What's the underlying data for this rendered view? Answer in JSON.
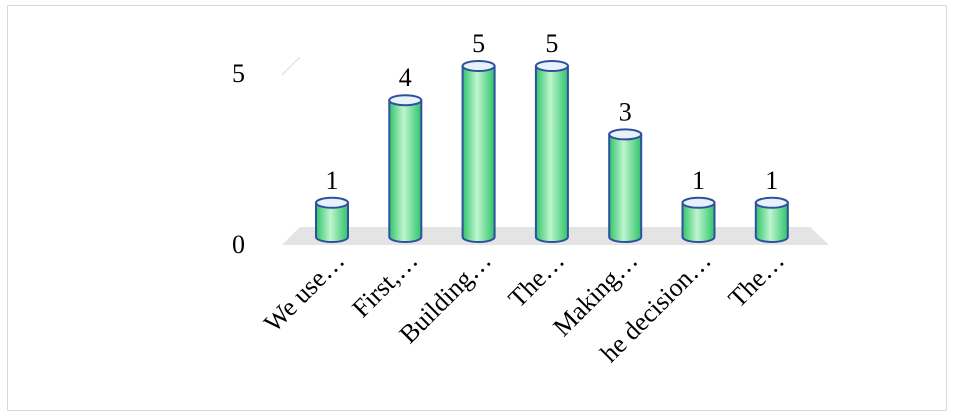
{
  "chart_data": {
    "type": "bar",
    "style": "3d-cylinder",
    "categories": [
      "We use…",
      "First,…",
      "Building…",
      "The…",
      "Making…",
      "he decision…",
      "The…"
    ],
    "values": [
      1,
      4,
      5,
      5,
      3,
      1,
      1
    ],
    "ylim": [
      0,
      5
    ],
    "yticks": [
      0,
      5
    ],
    "data_labels": true,
    "grid": false,
    "colors": {
      "fill": "#7fe3a0",
      "fill_dark": "#2fc46a",
      "stroke": "#2f4f9f",
      "top": "#e8f2fb",
      "floor": "#e4e4e4"
    }
  }
}
